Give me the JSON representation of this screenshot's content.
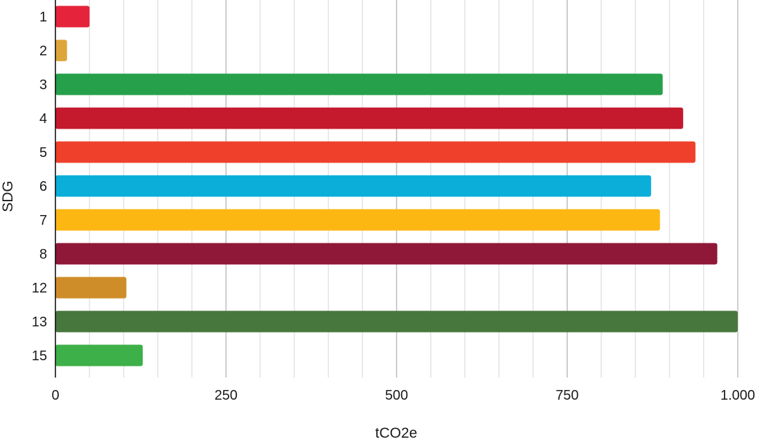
{
  "chart_data": {
    "type": "bar",
    "orientation": "horizontal",
    "categories": [
      "1",
      "2",
      "3",
      "4",
      "5",
      "6",
      "7",
      "8",
      "12",
      "13",
      "15"
    ],
    "values": [
      50,
      17,
      890,
      920,
      938,
      873,
      886,
      970,
      104,
      1000,
      128
    ],
    "colors": [
      "#e5243b",
      "#dda63a",
      "#26a04a",
      "#c5192d",
      "#ef402b",
      "#0aaed9",
      "#fdb713",
      "#8f1838",
      "#cf8d2a",
      "#48773e",
      "#3eb049"
    ],
    "xlabel": "tCO2e",
    "ylabel": "SDG",
    "xlim": [
      0,
      1000
    ],
    "xticks": [
      0,
      250,
      500,
      750,
      1000
    ],
    "xtick_labels": [
      "0",
      "250",
      "500",
      "750",
      "1.000"
    ],
    "grid": true,
    "minor_grid_step": 50,
    "axis_color": "#000000",
    "major_grid_color": "#bdbdbd",
    "minor_grid_color": "#e3e3e3"
  }
}
